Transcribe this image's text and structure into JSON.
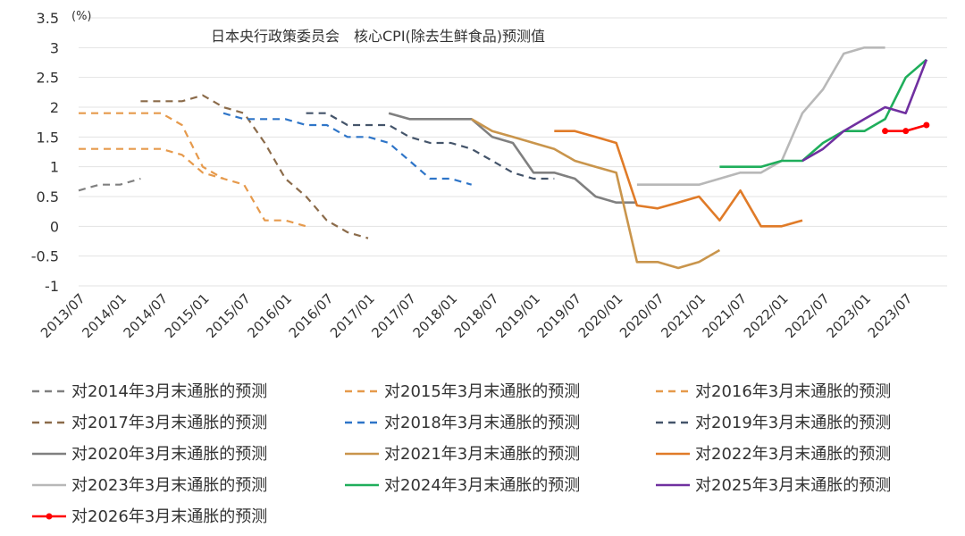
{
  "chart_data": {
    "type": "line",
    "title": "日本央行政策委员会　核心CPI(除去生鲜食品)预测值",
    "unit_label": "(%)",
    "ylim": [
      -1,
      3.5
    ],
    "y_ticks": [
      3.5,
      3,
      2.5,
      2,
      1.5,
      1,
      0.5,
      0,
      -0.5,
      -1
    ],
    "x_ticks": [
      "2013/07",
      "2014/01",
      "2014/07",
      "2015/01",
      "2015/07",
      "2016/01",
      "2016/07",
      "2017/01",
      "2017/07",
      "2018/01",
      "2018/07",
      "2019/01",
      "2019/07",
      "2020/01",
      "2020/07",
      "2021/01",
      "2021/07",
      "2022/01",
      "2022/07",
      "2023/01",
      "2023/07"
    ],
    "grid": "horizontal",
    "legend_position": "bottom",
    "series": [
      {
        "name": "对2014年3月末通胀的预测",
        "color": "#808080",
        "dash": "dashed",
        "points": [
          [
            "2013/07",
            0.6
          ],
          [
            "2013/10",
            0.7
          ],
          [
            "2014/01",
            0.7
          ],
          [
            "2014/04",
            0.8
          ]
        ]
      },
      {
        "name": "对2015年3月末通胀的预测",
        "color": "#E69A4C",
        "dash": "dashed",
        "points": [
          [
            "2013/07",
            1.9
          ],
          [
            "2013/10",
            1.9
          ],
          [
            "2014/01",
            1.9
          ],
          [
            "2014/04",
            1.9
          ],
          [
            "2014/07",
            1.9
          ],
          [
            "2014/10",
            1.7
          ],
          [
            "2015/01",
            1.0
          ],
          [
            "2015/04",
            0.8
          ]
        ]
      },
      {
        "name": "对2016年3月末通胀的预测",
        "color": "#E69A4C",
        "dash": "dashed",
        "points": [
          [
            "2013/07",
            1.3
          ],
          [
            "2013/10",
            1.3
          ],
          [
            "2014/01",
            1.3
          ],
          [
            "2014/04",
            1.3
          ],
          [
            "2014/07",
            1.3
          ],
          [
            "2014/10",
            1.2
          ],
          [
            "2015/01",
            0.9
          ],
          [
            "2015/04",
            0.8
          ],
          [
            "2015/07",
            0.7
          ],
          [
            "2015/10",
            0.1
          ],
          [
            "2016/01",
            0.1
          ],
          [
            "2016/04",
            0.0
          ]
        ]
      },
      {
        "name": "对2017年3月末通胀的预测",
        "color": "#8B6B4A",
        "dash": "dashed",
        "points": [
          [
            "2014/04",
            2.1
          ],
          [
            "2014/07",
            2.1
          ],
          [
            "2014/10",
            2.1
          ],
          [
            "2015/01",
            2.2
          ],
          [
            "2015/04",
            2.0
          ],
          [
            "2015/07",
            1.9
          ],
          [
            "2015/10",
            1.4
          ],
          [
            "2016/01",
            0.8
          ],
          [
            "2016/04",
            0.5
          ],
          [
            "2016/07",
            0.1
          ],
          [
            "2016/10",
            -0.1
          ],
          [
            "2017/01",
            -0.2
          ]
        ]
      },
      {
        "name": "对2018年3月末通胀的预测",
        "color": "#2E75C8",
        "dash": "dashed",
        "points": [
          [
            "2015/04",
            1.9
          ],
          [
            "2015/07",
            1.8
          ],
          [
            "2015/10",
            1.8
          ],
          [
            "2016/01",
            1.8
          ],
          [
            "2016/04",
            1.7
          ],
          [
            "2016/07",
            1.7
          ],
          [
            "2016/10",
            1.5
          ],
          [
            "2017/01",
            1.5
          ],
          [
            "2017/04",
            1.4
          ],
          [
            "2017/07",
            1.1
          ],
          [
            "2017/10",
            0.8
          ],
          [
            "2018/01",
            0.8
          ],
          [
            "2018/04",
            0.7
          ]
        ]
      },
      {
        "name": "对2019年3月末通胀的预测",
        "color": "#44546A",
        "dash": "dashed",
        "points": [
          [
            "2016/04",
            1.9
          ],
          [
            "2016/07",
            1.9
          ],
          [
            "2016/10",
            1.7
          ],
          [
            "2017/01",
            1.7
          ],
          [
            "2017/04",
            1.7
          ],
          [
            "2017/07",
            1.5
          ],
          [
            "2017/10",
            1.4
          ],
          [
            "2018/01",
            1.4
          ],
          [
            "2018/04",
            1.3
          ],
          [
            "2018/07",
            1.1
          ],
          [
            "2018/10",
            0.9
          ],
          [
            "2019/01",
            0.8
          ],
          [
            "2019/04",
            0.8
          ]
        ]
      },
      {
        "name": "对2020年3月末通胀的预测",
        "color": "#808080",
        "dash": "solid",
        "points": [
          [
            "2017/04",
            1.9
          ],
          [
            "2017/07",
            1.8
          ],
          [
            "2017/10",
            1.8
          ],
          [
            "2018/01",
            1.8
          ],
          [
            "2018/04",
            1.8
          ],
          [
            "2018/07",
            1.5
          ],
          [
            "2018/10",
            1.4
          ],
          [
            "2019/01",
            0.9
          ],
          [
            "2019/04",
            0.9
          ],
          [
            "2019/07",
            0.8
          ],
          [
            "2019/10",
            0.5
          ],
          [
            "2020/01",
            0.4
          ],
          [
            "2020/04",
            0.4
          ]
        ]
      },
      {
        "name": "对2021年3月末通胀的预测",
        "color": "#C9954C",
        "dash": "solid",
        "points": [
          [
            "2018/04",
            1.8
          ],
          [
            "2018/07",
            1.6
          ],
          [
            "2018/10",
            1.5
          ],
          [
            "2019/01",
            1.4
          ],
          [
            "2019/04",
            1.3
          ],
          [
            "2019/07",
            1.1
          ],
          [
            "2019/10",
            1.0
          ],
          [
            "2020/01",
            0.9
          ],
          [
            "2020/04",
            -0.6
          ],
          [
            "2020/07",
            -0.6
          ],
          [
            "2020/10",
            -0.7
          ],
          [
            "2021/01",
            -0.6
          ],
          [
            "2021/04",
            -0.4
          ]
        ]
      },
      {
        "name": "对2022年3月末通胀的预测",
        "color": "#E07B28",
        "dash": "solid",
        "points": [
          [
            "2019/04",
            1.6
          ],
          [
            "2019/07",
            1.6
          ],
          [
            "2019/10",
            1.5
          ],
          [
            "2020/01",
            1.4
          ],
          [
            "2020/04",
            0.35
          ],
          [
            "2020/07",
            0.3
          ],
          [
            "2020/10",
            0.4
          ],
          [
            "2021/01",
            0.5
          ],
          [
            "2021/04",
            0.1
          ],
          [
            "2021/07",
            0.6
          ],
          [
            "2021/10",
            0.0
          ],
          [
            "2022/01",
            0.0
          ],
          [
            "2022/04",
            0.1
          ]
        ]
      },
      {
        "name": "对2023年3月末通胀的预测",
        "color": "#B8B8B8",
        "dash": "solid",
        "points": [
          [
            "2020/04",
            0.7
          ],
          [
            "2020/07",
            0.7
          ],
          [
            "2020/10",
            0.7
          ],
          [
            "2021/01",
            0.7
          ],
          [
            "2021/04",
            0.8
          ],
          [
            "2021/07",
            0.9
          ],
          [
            "2021/10",
            0.9
          ],
          [
            "2022/01",
            1.1
          ],
          [
            "2022/04",
            1.9
          ],
          [
            "2022/07",
            2.3
          ],
          [
            "2022/10",
            2.9
          ],
          [
            "2023/01",
            3.0
          ],
          [
            "2023/04",
            3.0
          ]
        ]
      },
      {
        "name": "对2024年3月末通胀的预测",
        "color": "#1FAE5B",
        "dash": "solid",
        "points": [
          [
            "2021/04",
            1.0
          ],
          [
            "2021/07",
            1.0
          ],
          [
            "2021/10",
            1.0
          ],
          [
            "2022/01",
            1.1
          ],
          [
            "2022/04",
            1.1
          ],
          [
            "2022/07",
            1.4
          ],
          [
            "2022/10",
            1.6
          ],
          [
            "2023/01",
            1.6
          ],
          [
            "2023/04",
            1.8
          ],
          [
            "2023/07",
            2.5
          ],
          [
            "2023/10",
            2.8
          ]
        ]
      },
      {
        "name": "对2025年3月末通胀的预测",
        "color": "#7030A0",
        "dash": "solid",
        "points": [
          [
            "2022/04",
            1.1
          ],
          [
            "2022/07",
            1.3
          ],
          [
            "2022/10",
            1.6
          ],
          [
            "2023/01",
            1.8
          ],
          [
            "2023/04",
            2.0
          ],
          [
            "2023/07",
            1.9
          ],
          [
            "2023/10",
            2.8
          ]
        ]
      },
      {
        "name": "对2026年3月末通胀的预测",
        "color": "#FF0000",
        "dash": "solid",
        "markers": true,
        "points": [
          [
            "2023/04",
            1.6
          ],
          [
            "2023/07",
            1.6
          ],
          [
            "2023/10",
            1.7
          ]
        ]
      }
    ]
  }
}
